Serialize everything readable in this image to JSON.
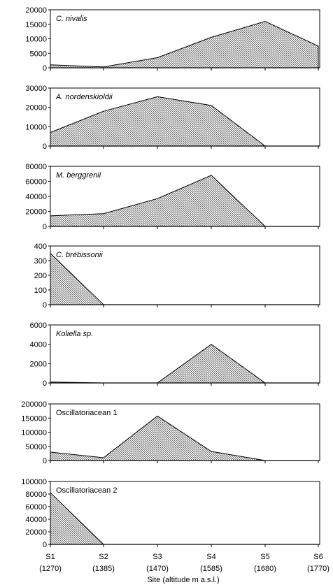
{
  "chart_data": [
    {
      "type": "area",
      "title": "C. nivalis",
      "title_italic": true,
      "x": [
        "S1",
        "S2",
        "S3",
        "S4",
        "S5",
        "S6"
      ],
      "values": [
        1000,
        300,
        3500,
        10500,
        16000,
        7500
      ],
      "ylim": [
        0,
        20000
      ],
      "yticks": [
        "0",
        "5000",
        "10000",
        "15000",
        "20000"
      ]
    },
    {
      "type": "area",
      "title": "A. nordenskioldii",
      "title_italic": true,
      "x": [
        "S1",
        "S2",
        "S3",
        "S4",
        "S5",
        "S6"
      ],
      "values": [
        7000,
        18000,
        25500,
        21000,
        0,
        0
      ],
      "ylim": [
        0,
        30000
      ],
      "yticks": [
        "0",
        "10000",
        "20000",
        "30000"
      ]
    },
    {
      "type": "area",
      "title": "M. berggrenii",
      "title_italic": true,
      "x": [
        "S1",
        "S2",
        "S3",
        "S4",
        "S5",
        "S6"
      ],
      "values": [
        14000,
        17000,
        37000,
        68000,
        0,
        0
      ],
      "ylim": [
        0,
        80000
      ],
      "yticks": [
        "0",
        "20000",
        "40000",
        "60000",
        "80000"
      ]
    },
    {
      "type": "area",
      "title": "C. brébissonii",
      "title_italic": true,
      "x": [
        "S1",
        "S2",
        "S3",
        "S4",
        "S5",
        "S6"
      ],
      "values": [
        350,
        0,
        0,
        0,
        0,
        0
      ],
      "ylim": [
        0,
        400
      ],
      "yticks": [
        "0",
        "100",
        "200",
        "300",
        "400"
      ]
    },
    {
      "type": "area",
      "title": "Koliella  sp.",
      "title_italic": true,
      "x": [
        "S1",
        "S2",
        "S3",
        "S4",
        "S5",
        "S6"
      ],
      "values": [
        100,
        0,
        0,
        4000,
        0,
        0
      ],
      "ylim": [
        0,
        6000
      ],
      "yticks": [
        "0",
        "2000",
        "4000",
        "6000"
      ]
    },
    {
      "type": "area",
      "title": "Oscillatoriacean 1",
      "title_italic": false,
      "x": [
        "S1",
        "S2",
        "S3",
        "S4",
        "S5",
        "S6"
      ],
      "values": [
        30000,
        10000,
        157000,
        32000,
        0,
        0
      ],
      "ylim": [
        0,
        200000
      ],
      "yticks": [
        "0",
        "50000",
        "100000",
        "150000",
        "200000"
      ]
    },
    {
      "type": "area",
      "title": "Oscillatoriacean 2",
      "title_italic": false,
      "x": [
        "S1",
        "S2",
        "S3",
        "S4",
        "S5",
        "S6"
      ],
      "values": [
        82000,
        0,
        0,
        0,
        0,
        0
      ],
      "ylim": [
        0,
        100000
      ],
      "yticks": [
        "0",
        "20000",
        "40000",
        "60000",
        "80000",
        "100000"
      ]
    }
  ],
  "x_axis": {
    "sites": [
      "S1",
      "S2",
      "S3",
      "S4",
      "S5",
      "S6"
    ],
    "altitudes": [
      "(1270)",
      "(1385)",
      "(1470)",
      "(1585)",
      "(1680)",
      "(1770)"
    ],
    "label": "Site (altitude m a.s.l.)"
  },
  "colors": {
    "fill": "#8c8c8c",
    "stroke": "#000000",
    "background": "#ffffff"
  }
}
